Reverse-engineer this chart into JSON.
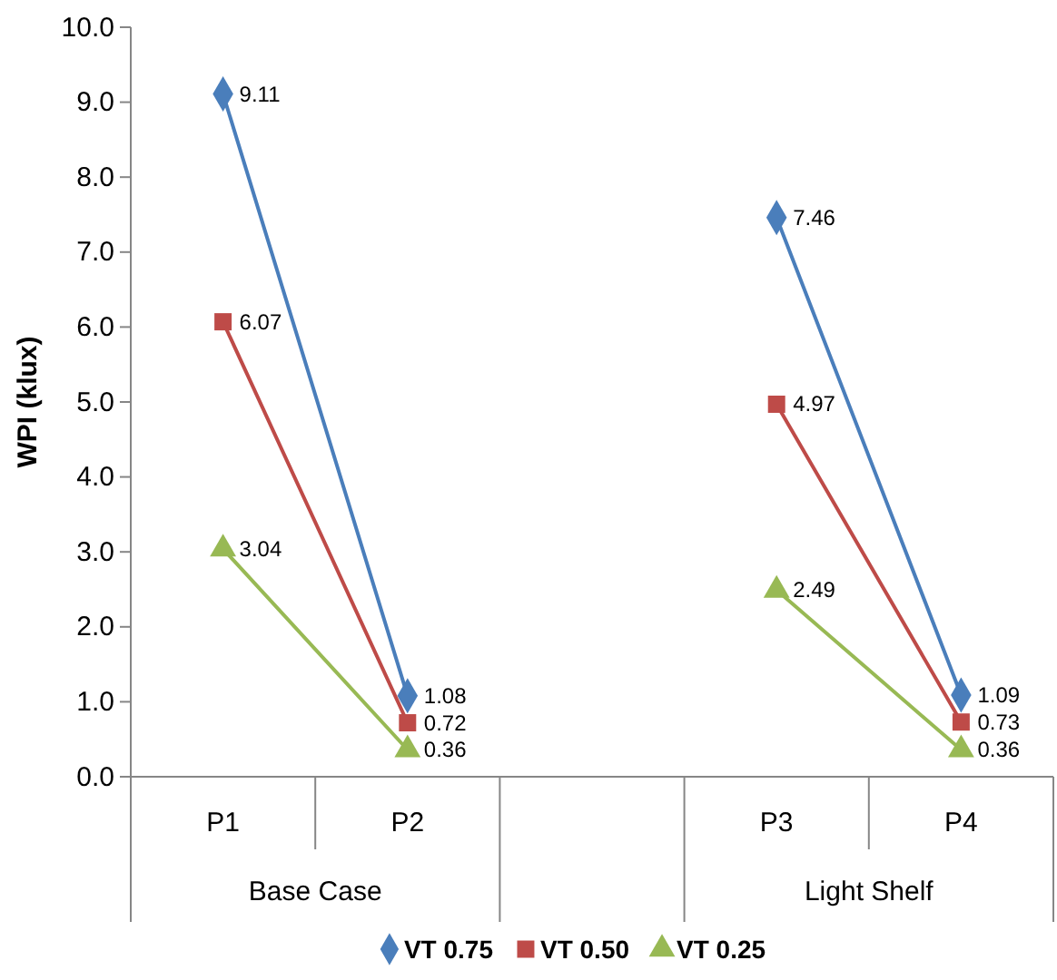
{
  "chart_data": {
    "type": "line",
    "ylabel": "WPI (klux)",
    "categories": [
      "P1",
      "P2",
      null,
      "P3",
      "P4"
    ],
    "series": [
      {
        "name": "VT 0.75",
        "color": "#4a7ebb",
        "marker": "diamond",
        "values": [
          9.11,
          1.08,
          null,
          7.46,
          1.09
        ]
      },
      {
        "name": "VT 0.50",
        "color": "#be4b48",
        "marker": "square",
        "values": [
          6.07,
          0.72,
          null,
          4.97,
          0.73
        ]
      },
      {
        "name": "VT 0.25",
        "color": "#98b954",
        "marker": "triangle",
        "values": [
          3.04,
          0.36,
          null,
          2.49,
          0.36
        ]
      }
    ],
    "ylim": [
      0,
      10
    ],
    "yticks": [
      {
        "value": 0,
        "label": "0.0"
      },
      {
        "value": 1,
        "label": "1.0"
      },
      {
        "value": 2,
        "label": "2.0"
      },
      {
        "value": 3,
        "label": "3.0"
      },
      {
        "value": 4,
        "label": "4.0"
      },
      {
        "value": 5,
        "label": "5.0"
      },
      {
        "value": 6,
        "label": "6.0"
      },
      {
        "value": 7,
        "label": "7.0"
      },
      {
        "value": 8,
        "label": "8.0"
      },
      {
        "value": 9,
        "label": "9.0"
      },
      {
        "value": 10,
        "label": "10.0"
      }
    ],
    "annotations": [
      "Base Case",
      "Light Shelf"
    ],
    "data_labels": true,
    "grid": false,
    "legend": "bottom"
  }
}
